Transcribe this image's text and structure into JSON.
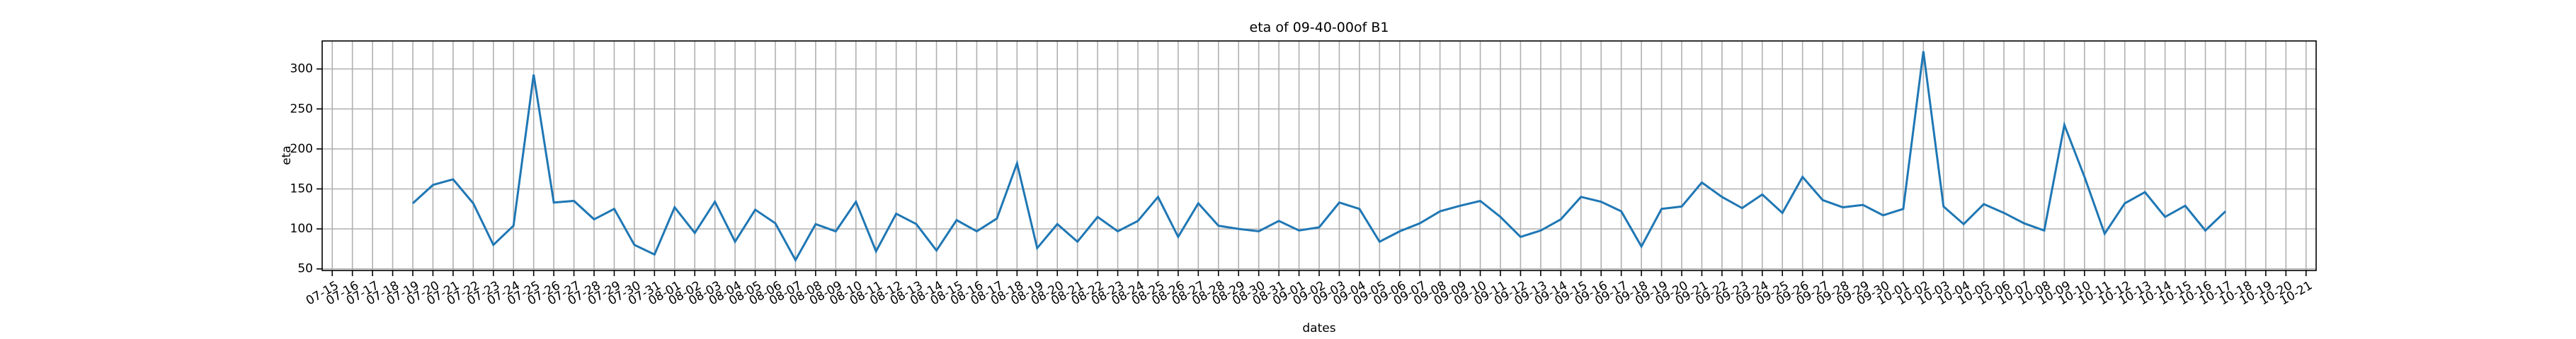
{
  "chart_data": {
    "type": "line",
    "title": "eta of 09-40-00of B1",
    "x_label": "dates",
    "y_label": "eta",
    "categories": [
      "07-15",
      "07-16",
      "07-17",
      "07-18",
      "07-19",
      "07-20",
      "07-21",
      "07-22",
      "07-23",
      "07-24",
      "07-25",
      "07-26",
      "07-27",
      "07-28",
      "07-29",
      "07-30",
      "07-31",
      "08-01",
      "08-02",
      "08-03",
      "08-04",
      "08-05",
      "08-06",
      "08-07",
      "08-08",
      "08-09",
      "08-10",
      "08-11",
      "08-12",
      "08-13",
      "08-14",
      "08-15",
      "08-16",
      "08-17",
      "08-18",
      "08-19",
      "08-20",
      "08-21",
      "08-22",
      "08-23",
      "08-24",
      "08-25",
      "08-26",
      "08-27",
      "08-28",
      "08-29",
      "08-30",
      "08-31",
      "09-01",
      "09-02",
      "09-03",
      "09-04",
      "09-05",
      "09-06",
      "09-07",
      "09-08",
      "09-09",
      "09-10",
      "09-11",
      "09-12",
      "09-13",
      "09-14",
      "09-15",
      "09-16",
      "09-17",
      "09-18",
      "09-19",
      "09-20",
      "09-21",
      "09-22",
      "09-23",
      "09-24",
      "09-25",
      "09-26",
      "09-27",
      "09-28",
      "09-29",
      "09-30",
      "10-01",
      "10-02",
      "10-03",
      "10-04",
      "10-05",
      "10-06",
      "10-07",
      "10-08",
      "10-09",
      "10-10",
      "10-11",
      "10-12",
      "10-13",
      "10-14",
      "10-15",
      "10-16",
      "10-17",
      "10-18",
      "10-19",
      "10-20",
      "10-21"
    ],
    "series": [
      {
        "color": "#1f77b4",
        "values": [
          null,
          null,
          null,
          null,
          132,
          155,
          162,
          132,
          80,
          104,
          293,
          133,
          135,
          112,
          125,
          80,
          68,
          127,
          95,
          134,
          84,
          124,
          107,
          61,
          106,
          97,
          134,
          72,
          119,
          106,
          73,
          111,
          97,
          113,
          182,
          76,
          106,
          84,
          115,
          97,
          110,
          140,
          90,
          132,
          104,
          100,
          97,
          110,
          98,
          102,
          133,
          125,
          84,
          97,
          107,
          122,
          129,
          135,
          115,
          90,
          98,
          112,
          140,
          134,
          122,
          78,
          125,
          128,
          158,
          140,
          126,
          143,
          120,
          165,
          136,
          127,
          130,
          117,
          125,
          322,
          128,
          106,
          131,
          120,
          107,
          98,
          230,
          165,
          94,
          132,
          146,
          115,
          129,
          98,
          122,
          null,
          null,
          null,
          null
        ]
      }
    ],
    "ylim": [
      48,
      335
    ],
    "yticks": [
      50,
      100,
      150,
      200,
      250,
      300
    ],
    "grid": true
  }
}
